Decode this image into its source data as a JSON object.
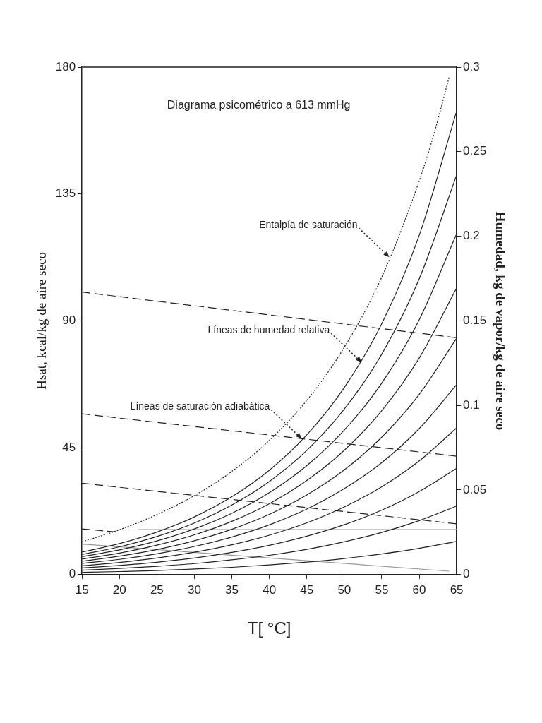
{
  "chart_data": {
    "type": "line",
    "title": "Diagrama psicométrico a 613 mmHg",
    "xlabel": "T[ °C]",
    "ylabel": "Hsat, kcal/kg de aire seco",
    "y2label": "Humedad, kg de vapor/kg de aire seco",
    "xlim": [
      15,
      65
    ],
    "xticks": [
      15,
      20,
      25,
      30,
      35,
      40,
      45,
      50,
      55,
      60,
      65
    ],
    "ylim": [
      0,
      180
    ],
    "yticks": [
      0,
      45,
      90,
      135,
      180
    ],
    "y2lim": [
      0,
      0.3
    ],
    "y2ticks": [
      0,
      0.05,
      0.1,
      0.15,
      0.2,
      0.25,
      0.3
    ],
    "grid": false,
    "legend": false,
    "marker": "none",
    "series": [
      {
        "axis": "y",
        "color": "#222222",
        "line_style": "dotted",
        "x": [
          15,
          20,
          25,
          30,
          35,
          40,
          45,
          50,
          55,
          60,
          62,
          64
        ],
        "values": [
          11.6,
          15.9,
          21.3,
          28.0,
          36.6,
          47.6,
          61.8,
          80.6,
          105.5,
          139.6,
          156.6,
          176.5
        ]
      },
      {
        "axis": "y2",
        "color": "#222222",
        "line_style": "solid",
        "x": [
          15,
          20,
          25,
          30,
          35,
          40,
          45,
          50,
          55,
          60,
          65
        ],
        "values": [
          0.0133,
          0.0183,
          0.0251,
          0.0341,
          0.046,
          0.0617,
          0.0826,
          0.1106,
          0.1483,
          0.2005,
          0.2741
        ]
      },
      {
        "axis": "y2",
        "color": "#222222",
        "line_style": "solid",
        "x": [
          15,
          20,
          25,
          30,
          35,
          40,
          45,
          50,
          55,
          60,
          65
        ],
        "values": [
          0.0119,
          0.0164,
          0.0225,
          0.0305,
          0.0411,
          0.055,
          0.0734,
          0.0978,
          0.1303,
          0.1748,
          0.2363
        ]
      },
      {
        "axis": "y2",
        "color": "#222222",
        "line_style": "solid",
        "x": [
          15,
          20,
          25,
          30,
          35,
          40,
          45,
          50,
          55,
          60,
          65
        ],
        "values": [
          0.0106,
          0.0146,
          0.0199,
          0.027,
          0.0362,
          0.0484,
          0.0644,
          0.0854,
          0.1132,
          0.1506,
          0.2015
        ]
      },
      {
        "axis": "y2",
        "color": "#222222",
        "line_style": "solid",
        "x": [
          15,
          20,
          25,
          30,
          35,
          40,
          45,
          50,
          55,
          60,
          65
        ],
        "values": [
          0.0092,
          0.0127,
          0.0174,
          0.0235,
          0.0315,
          0.0419,
          0.0556,
          0.0735,
          0.0969,
          0.128,
          0.1695
        ]
      },
      {
        "axis": "y2",
        "color": "#222222",
        "line_style": "solid",
        "x": [
          15,
          20,
          25,
          30,
          35,
          40,
          45,
          50,
          55,
          60,
          65
        ],
        "values": [
          0.0079,
          0.0109,
          0.0148,
          0.02,
          0.0268,
          0.0356,
          0.0471,
          0.0619,
          0.0812,
          0.1065,
          0.1398
        ]
      },
      {
        "axis": "y2",
        "color": "#222222",
        "line_style": "solid",
        "x": [
          15,
          20,
          25,
          30,
          35,
          40,
          45,
          50,
          55,
          60,
          65
        ],
        "values": [
          0.0066,
          0.009,
          0.0123,
          0.0166,
          0.0222,
          0.0294,
          0.0387,
          0.0508,
          0.0662,
          0.0863,
          0.1123
        ]
      },
      {
        "axis": "y2",
        "color": "#222222",
        "line_style": "solid",
        "x": [
          15,
          20,
          25,
          30,
          35,
          40,
          45,
          50,
          55,
          60,
          65
        ],
        "values": [
          0.0052,
          0.0072,
          0.0098,
          0.0132,
          0.0176,
          0.0233,
          0.0306,
          0.04,
          0.0519,
          0.0672,
          0.0867
        ]
      },
      {
        "axis": "y2",
        "color": "#222222",
        "line_style": "solid",
        "x": [
          15,
          20,
          25,
          30,
          35,
          40,
          45,
          50,
          55,
          60,
          65
        ],
        "values": [
          0.0039,
          0.0054,
          0.0073,
          0.0098,
          0.0131,
          0.0173,
          0.0227,
          0.0295,
          0.0381,
          0.0491,
          0.0628
        ]
      },
      {
        "axis": "y2",
        "color": "#222222",
        "line_style": "solid",
        "x": [
          15,
          20,
          25,
          30,
          35,
          40,
          45,
          50,
          55,
          60,
          65
        ],
        "values": [
          0.0026,
          0.0036,
          0.0049,
          0.0065,
          0.0087,
          0.0114,
          0.0149,
          0.0194,
          0.0249,
          0.0319,
          0.0405
        ]
      },
      {
        "axis": "y2",
        "color": "#222222",
        "line_style": "solid",
        "x": [
          15,
          20,
          25,
          30,
          35,
          40,
          45,
          50,
          55,
          60,
          65
        ],
        "values": [
          0.0013,
          0.0018,
          0.0024,
          0.0033,
          0.0043,
          0.0057,
          0.0074,
          0.0095,
          0.0122,
          0.0155,
          0.0196
        ]
      },
      {
        "axis": "y2",
        "color": "#222222",
        "line_style": "dashed",
        "x": [
          15,
          65
        ],
        "values": [
          0.167,
          0.14
        ]
      },
      {
        "axis": "y2",
        "color": "#222222",
        "line_style": "dashed",
        "x": [
          15,
          65
        ],
        "values": [
          0.095,
          0.07
        ]
      },
      {
        "axis": "y2",
        "color": "#222222",
        "line_style": "dashed",
        "x": [
          15,
          65
        ],
        "values": [
          0.054,
          0.03
        ]
      },
      {
        "axis": "y2",
        "color": "#222222",
        "line_style": "dashed",
        "x": [
          15,
          20
        ],
        "values": [
          0.027,
          0.025
        ]
      },
      {
        "axis": "y2",
        "color": "#999999",
        "line_style": "solid",
        "x": [
          22.5,
          65
        ],
        "values": [
          0.0266,
          0.0266
        ]
      },
      {
        "axis": "y2",
        "color": "#999999",
        "line_style": "solid",
        "x": [
          15,
          64
        ],
        "values": [
          0.018,
          0.002
        ]
      }
    ],
    "annotations": [
      {
        "text": "Entalpía de saturación",
        "x": 56,
        "y": 112.6
      },
      {
        "text": "Líneas de humedad relativa",
        "x": 52.3,
        "y": 75.3
      },
      {
        "text": "Líneas de saturación adiabática",
        "x": 44.3,
        "y": 48.2
      }
    ]
  }
}
